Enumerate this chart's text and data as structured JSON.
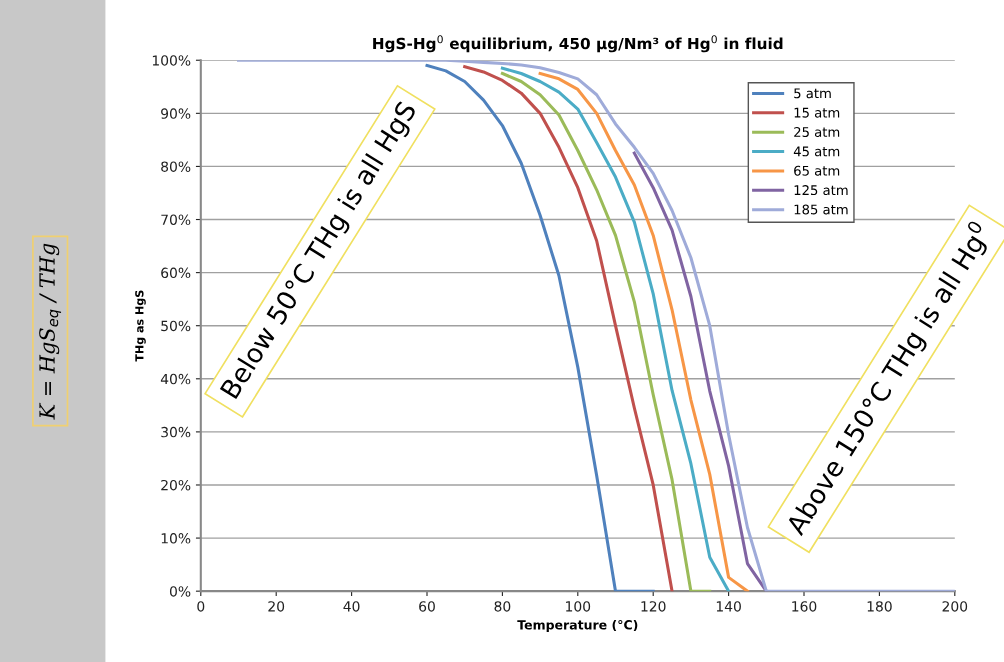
{
  "chart_data": {
    "type": "line",
    "title": "HgS-Hg$^{0}$ equilibrium, 450 µg/Nm³ of Hg$^{0}$ in fluid",
    "xlabel": "Temperature (°C)",
    "ylabel": "THg as HgS",
    "x": [
      10,
      15,
      20,
      25,
      30,
      35,
      40,
      45,
      50,
      55,
      60,
      65,
      70,
      75,
      80,
      85,
      90,
      95,
      100,
      105,
      110,
      115,
      120,
      125,
      130,
      135,
      140,
      145,
      150,
      155,
      160,
      165,
      170,
      175,
      180,
      185,
      190,
      195,
      200
    ],
    "series": [
      {
        "name": "5 atm",
        "color": "#4f81bd",
        "values": [
          null,
          null,
          null,
          null,
          null,
          null,
          null,
          null,
          null,
          null,
          99,
          98,
          96,
          92.5,
          87.7,
          80.6,
          70.8,
          59.4,
          42.2,
          21.8,
          0,
          0,
          0,
          null,
          null,
          null,
          null,
          null,
          null,
          null,
          null,
          null,
          null,
          null,
          null,
          null,
          null,
          null,
          null
        ]
      },
      {
        "name": "15 atm",
        "color": "#c0504d",
        "values": [
          null,
          null,
          null,
          null,
          null,
          null,
          null,
          null,
          null,
          null,
          null,
          null,
          98.8,
          97.8,
          96.2,
          93.8,
          90,
          83.6,
          76,
          66,
          50,
          34.5,
          20,
          0,
          null,
          null,
          null,
          null,
          null,
          null,
          null,
          null,
          null,
          null,
          null,
          null,
          null,
          null,
          null
        ]
      },
      {
        "name": "25 atm",
        "color": "#9bbb59",
        "values": [
          null,
          null,
          null,
          null,
          null,
          null,
          null,
          null,
          null,
          null,
          null,
          null,
          null,
          null,
          97.5,
          96,
          93.5,
          89.7,
          83,
          75.6,
          67,
          54.5,
          37,
          21,
          0,
          0,
          null,
          null,
          null,
          null,
          null,
          null,
          null,
          null,
          null,
          null,
          null,
          null,
          null
        ]
      },
      {
        "name": "45 atm",
        "color": "#4bacc6",
        "values": [
          null,
          null,
          null,
          null,
          null,
          null,
          null,
          null,
          null,
          null,
          null,
          null,
          null,
          null,
          98.5,
          97.5,
          96,
          94,
          90.8,
          84.5,
          78,
          69.5,
          56,
          37.8,
          24,
          6.4,
          0,
          null,
          null,
          null,
          null,
          null,
          null,
          null,
          null,
          null,
          null,
          null,
          null
        ]
      },
      {
        "name": "65 atm",
        "color": "#f79646",
        "values": [
          null,
          null,
          null,
          null,
          null,
          null,
          null,
          null,
          null,
          null,
          null,
          null,
          null,
          null,
          null,
          null,
          97.5,
          96.5,
          94.5,
          90,
          83,
          76.5,
          67,
          53,
          36,
          22,
          2.6,
          0,
          null,
          null,
          null,
          null,
          null,
          null,
          null,
          null,
          null,
          null,
          null
        ]
      },
      {
        "name": "125 atm",
        "color": "#8064a2",
        "values": [
          null,
          null,
          null,
          null,
          null,
          null,
          null,
          null,
          null,
          null,
          null,
          null,
          null,
          null,
          null,
          null,
          null,
          null,
          null,
          null,
          null,
          82.5,
          76,
          68,
          55.5,
          37.7,
          23.6,
          5.2,
          0,
          null,
          null,
          null,
          null,
          null,
          null,
          null,
          null,
          null,
          null
        ]
      },
      {
        "name": "185 atm",
        "color": "#9fabd9",
        "values": [
          100,
          100,
          100,
          100,
          100,
          100,
          100,
          100,
          100,
          100,
          100,
          100,
          99.8,
          99.6,
          99.4,
          99.1,
          98.6,
          97.7,
          96.5,
          93.5,
          88,
          83.6,
          78.7,
          71.7,
          62.8,
          50,
          29.5,
          12,
          0,
          0,
          0,
          0,
          0,
          0,
          0,
          0,
          0,
          0,
          0
        ]
      }
    ],
    "xlim": [
      0,
      200
    ],
    "xticks": [
      0,
      20,
      40,
      60,
      80,
      100,
      120,
      140,
      160,
      180,
      200
    ],
    "ylim": [
      0,
      100
    ],
    "yticks": [
      {
        "value": 0,
        "label": "0%"
      },
      {
        "value": 10,
        "label": "10%"
      },
      {
        "value": 20,
        "label": "20%"
      },
      {
        "value": 30,
        "label": "30%"
      },
      {
        "value": 40,
        "label": "40%"
      },
      {
        "value": 50,
        "label": "50%"
      },
      {
        "value": 60,
        "label": "60%"
      },
      {
        "value": 70,
        "label": "70%"
      },
      {
        "value": 80,
        "label": "80%"
      },
      {
        "value": 90,
        "label": "90%"
      },
      {
        "value": 100,
        "label": "100%"
      }
    ],
    "grid": "y",
    "legend": "top right",
    "marker": "none",
    "line_style": "solid",
    "annotations": [
      "Below 50°C THg is all HgS",
      "Above 150°C THg is all Hg$^{0}$",
      "K = HgS$_{eq}$ / THg"
    ]
  }
}
